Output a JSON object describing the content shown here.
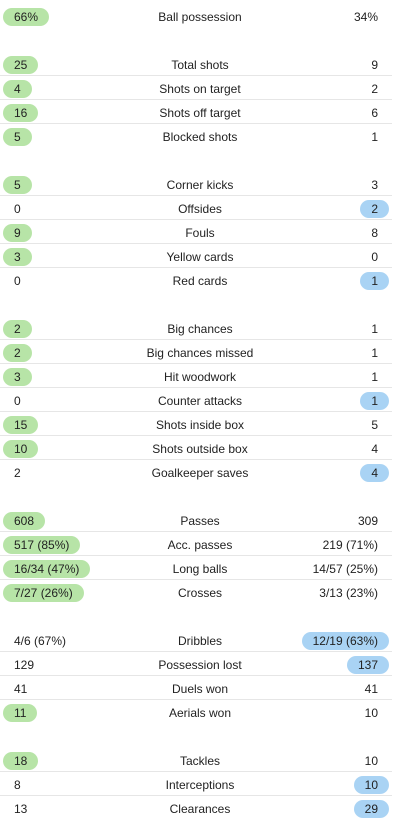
{
  "colors": {
    "home_highlight": "#b7e4a7",
    "away_highlight": "#a9d3f4",
    "divider": "#e6e6e6"
  },
  "groups": [
    {
      "rows": [
        {
          "label": "Ball possession",
          "home": "66%",
          "away": "34%",
          "hl": "home"
        }
      ]
    },
    {
      "rows": [
        {
          "label": "Total shots",
          "home": "25",
          "away": "9",
          "hl": "home"
        },
        {
          "label": "Shots on target",
          "home": "4",
          "away": "2",
          "hl": "home"
        },
        {
          "label": "Shots off target",
          "home": "16",
          "away": "6",
          "hl": "home"
        },
        {
          "label": "Blocked shots",
          "home": "5",
          "away": "1",
          "hl": "home"
        }
      ]
    },
    {
      "rows": [
        {
          "label": "Corner kicks",
          "home": "5",
          "away": "3",
          "hl": "home"
        },
        {
          "label": "Offsides",
          "home": "0",
          "away": "2",
          "hl": "away"
        },
        {
          "label": "Fouls",
          "home": "9",
          "away": "8",
          "hl": "home"
        },
        {
          "label": "Yellow cards",
          "home": "3",
          "away": "0",
          "hl": "home"
        },
        {
          "label": "Red cards",
          "home": "0",
          "away": "1",
          "hl": "away"
        }
      ]
    },
    {
      "rows": [
        {
          "label": "Big chances",
          "home": "2",
          "away": "1",
          "hl": "home"
        },
        {
          "label": "Big chances missed",
          "home": "2",
          "away": "1",
          "hl": "home"
        },
        {
          "label": "Hit woodwork",
          "home": "3",
          "away": "1",
          "hl": "home"
        },
        {
          "label": "Counter attacks",
          "home": "0",
          "away": "1",
          "hl": "away"
        },
        {
          "label": "Shots inside box",
          "home": "15",
          "away": "5",
          "hl": "home"
        },
        {
          "label": "Shots outside box",
          "home": "10",
          "away": "4",
          "hl": "home"
        },
        {
          "label": "Goalkeeper saves",
          "home": "2",
          "away": "4",
          "hl": "away"
        }
      ]
    },
    {
      "rows": [
        {
          "label": "Passes",
          "home": "608",
          "away": "309",
          "hl": "home"
        },
        {
          "label": "Acc. passes",
          "home": "517 (85%)",
          "away": "219 (71%)",
          "hl": "home"
        },
        {
          "label": "Long balls",
          "home": "16/34 (47%)",
          "away": "14/57 (25%)",
          "hl": "home"
        },
        {
          "label": "Crosses",
          "home": "7/27 (26%)",
          "away": "3/13 (23%)",
          "hl": "home"
        }
      ]
    },
    {
      "rows": [
        {
          "label": "Dribbles",
          "home": "4/6 (67%)",
          "away": "12/19 (63%)",
          "hl": "away"
        },
        {
          "label": "Possession lost",
          "home": "129",
          "away": "137",
          "hl": "away"
        },
        {
          "label": "Duels won",
          "home": "41",
          "away": "41",
          "hl": "none"
        },
        {
          "label": "Aerials won",
          "home": "11",
          "away": "10",
          "hl": "home"
        }
      ]
    },
    {
      "rows": [
        {
          "label": "Tackles",
          "home": "18",
          "away": "10",
          "hl": "home"
        },
        {
          "label": "Interceptions",
          "home": "8",
          "away": "10",
          "hl": "away"
        },
        {
          "label": "Clearances",
          "home": "13",
          "away": "29",
          "hl": "away"
        }
      ]
    }
  ]
}
